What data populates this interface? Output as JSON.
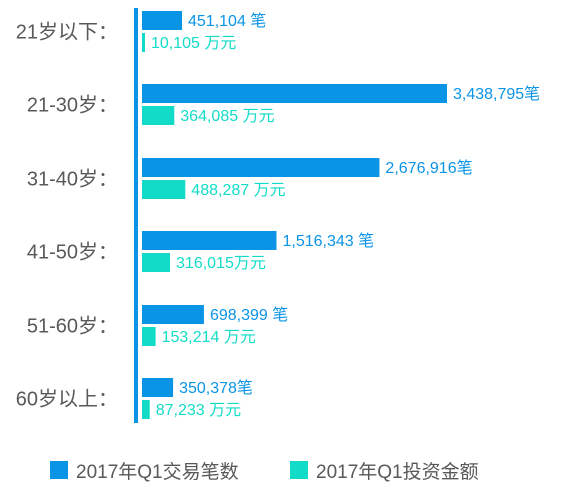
{
  "chart_data": {
    "type": "bar",
    "orientation": "horizontal",
    "title": "",
    "xlabel": "",
    "ylabel": "",
    "categories": [
      "21岁以下：",
      "21-30岁：",
      "31-40岁：",
      "41-50岁：",
      "51-60岁：",
      "60岁以上："
    ],
    "series": [
      {
        "name": "2017年Q1交易笔数",
        "color": "#0a94e6",
        "values": [
          451104,
          3438795,
          2676916,
          1516343,
          698399,
          350378
        ],
        "labels": [
          "451,104 笔",
          "3,438,795笔",
          "2,676,916笔",
          "1,516,343 笔",
          "698,399 笔",
          "350,378笔"
        ]
      },
      {
        "name": "2017年Q1投资金额",
        "color": "#12dcc8",
        "values": [
          10105,
          364085,
          488287,
          316015,
          153214,
          87233
        ],
        "labels": [
          "10,105 万元",
          "364,085 万元",
          "488,287 万元",
          "316,015万元",
          "153,214 万元",
          "87,233 万元"
        ]
      }
    ],
    "legend_position": "bottom",
    "grid": false
  }
}
